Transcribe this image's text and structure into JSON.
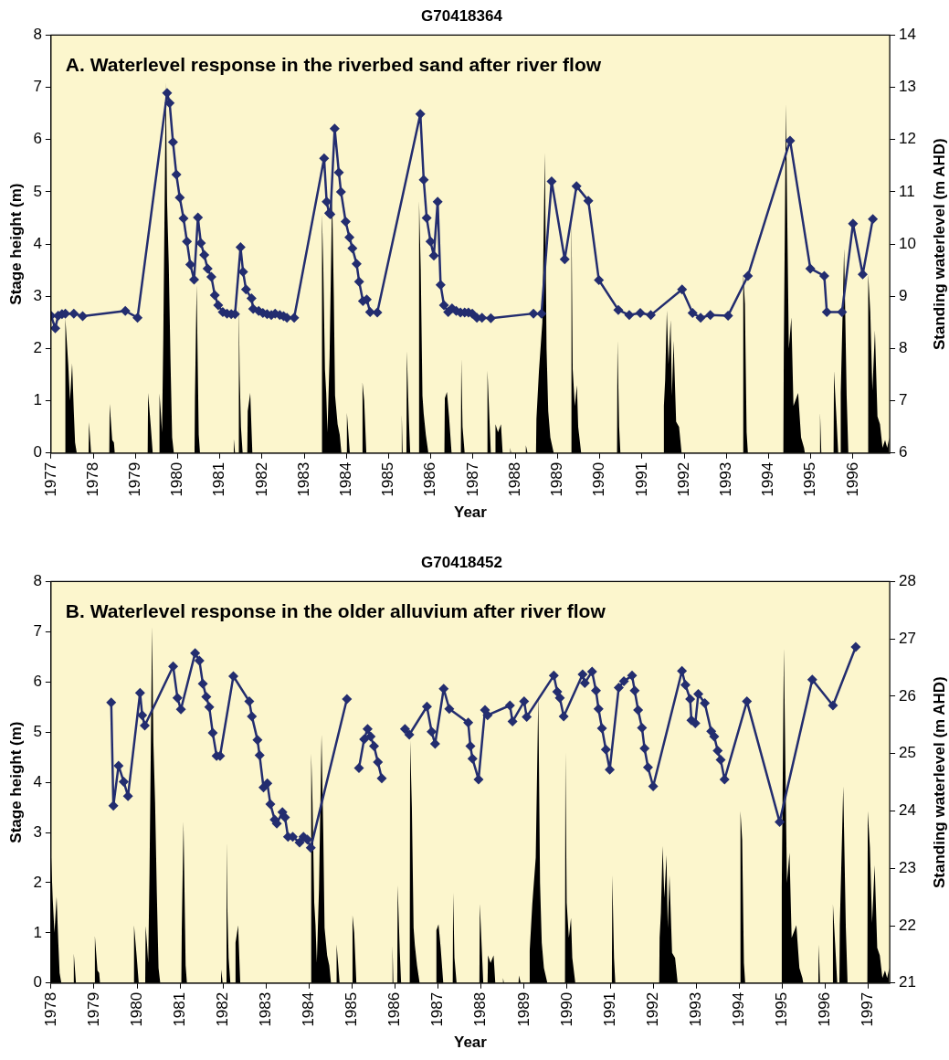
{
  "chart_data": [
    {
      "type": "line",
      "title": "G70418364",
      "xlabel": "Year",
      "ylabel": "Stage height (m)",
      "y2label": "Standing waterlevel (m AHD)",
      "annotations": [
        "A. Waterlevel response in the riverbed sand after river flow"
      ],
      "xlim": [
        1977,
        1996.87
      ],
      "xticks": [
        1977,
        1978,
        1979,
        1980,
        1981,
        1982,
        1983,
        1984,
        1985,
        1986,
        1987,
        1988,
        1989,
        1990,
        1991,
        1992,
        1993,
        1994,
        1995,
        1996
      ],
      "ylim": [
        0,
        8
      ],
      "yticks": [
        0,
        1,
        2,
        3,
        4,
        5,
        6,
        7,
        8
      ],
      "y2lim": [
        6,
        14
      ],
      "y2ticks": [
        6,
        7,
        8,
        9,
        10,
        11,
        12,
        13,
        14
      ],
      "series": [
        {
          "type": "area",
          "color": "#000000",
          "marker": "none",
          "x": [
            1977.0,
            1977.33,
            1977.34,
            1977.41,
            1977.45,
            1977.5,
            1977.54,
            1977.57,
            1977.61,
            1977.89,
            1977.9,
            1977.95,
            1978.38,
            1978.39,
            1978.45,
            1978.49,
            1978.51,
            1979.29,
            1979.3,
            1979.36,
            1979.41,
            1979.56,
            1979.57,
            1979.6,
            1979.63,
            1979.66,
            1979.72,
            1979.75,
            1979.79,
            1979.83,
            1979.87,
            1979.91,
            1980.4,
            1980.41,
            1980.45,
            1980.5,
            1980.53,
            1981.32,
            1981.33,
            1981.36,
            1981.44,
            1981.45,
            1981.47,
            1981.5,
            1981.54,
            1981.65,
            1981.66,
            1981.72,
            1981.77,
            1983.41,
            1983.42,
            1983.45,
            1983.49,
            1983.52,
            1983.55,
            1983.6,
            1983.66,
            1983.7,
            1983.73,
            1983.79,
            1983.84,
            1983.88,
            1984.0,
            1984.01,
            1984.08,
            1984.37,
            1984.38,
            1984.42,
            1984.47,
            1985.3,
            1985.31,
            1985.33,
            1985.42,
            1985.43,
            1985.48,
            1985.51,
            1985.71,
            1985.72,
            1985.76,
            1985.8,
            1985.83,
            1985.88,
            1985.94,
            1986.32,
            1986.33,
            1986.38,
            1986.43,
            1986.49,
            1986.71,
            1986.72,
            1986.75,
            1986.8,
            1987.33,
            1987.34,
            1987.4,
            1987.42,
            1987.52,
            1987.53,
            1987.59,
            1987.66,
            1987.7,
            1987.87,
            1987.88,
            1987.9,
            1988.24,
            1988.25,
            1988.29,
            1988.49,
            1988.5,
            1988.56,
            1988.64,
            1988.7,
            1988.74,
            1988.78,
            1988.83,
            1988.91,
            1989.32,
            1989.33,
            1989.36,
            1989.41,
            1989.46,
            1989.49,
            1989.56,
            1990.41,
            1990.42,
            1990.46,
            1990.49,
            1991.51,
            1991.52,
            1991.55,
            1991.59,
            1991.63,
            1991.68,
            1991.71,
            1991.75,
            1991.81,
            1991.88,
            1991.94,
            1993.39,
            1993.4,
            1993.44,
            1993.48,
            1993.51,
            1994.35,
            1994.36,
            1994.41,
            1994.48,
            1994.54,
            1994.59,
            1994.7,
            1994.77,
            1994.84,
            1994.86,
            1995.21,
            1995.22,
            1995.25,
            1995.54,
            1995.55,
            1995.6,
            1995.65,
            1995.7,
            1995.71,
            1995.79,
            1995.85,
            1995.89,
            1996.35,
            1996.36,
            1996.41,
            1996.46,
            1996.52,
            1996.58,
            1996.64,
            1996.7,
            1996.76,
            1996.81,
            1996.86
          ],
          "values": [
            0,
            0,
            2.58,
            1.67,
            1.0,
            1.72,
            0.8,
            0.2,
            0,
            0,
            0.59,
            0,
            0,
            0.94,
            0.25,
            0.2,
            0,
            0,
            1.15,
            0.55,
            0,
            0,
            1.14,
            0.8,
            0.4,
            2.2,
            7.1,
            4.8,
            3.6,
            1.8,
            0.3,
            0,
            0,
            1.05,
            3.22,
            0.35,
            0,
            0,
            0.27,
            0,
            0,
            2.85,
            1.5,
            0.5,
            0,
            0,
            0.8,
            1.15,
            0,
            0,
            4.57,
            3.6,
            1.6,
            1.15,
            0.4,
            1.85,
            4.95,
            3.0,
            1.1,
            0.55,
            0.35,
            0,
            0,
            0.77,
            0,
            0,
            1.35,
            1.0,
            0,
            0,
            0.75,
            0,
            0,
            1.95,
            0.6,
            0,
            0,
            4.83,
            3.5,
            1.1,
            0.75,
            0.35,
            0,
            0,
            1.05,
            1.17,
            0.7,
            0,
            0,
            1.8,
            0.5,
            0,
            0,
            1.58,
            0.4,
            0,
            0,
            0.55,
            0.4,
            0.55,
            0,
            0,
            0.1,
            0,
            0,
            0.15,
            0,
            0,
            0.65,
            1.57,
            2.5,
            5.75,
            2.0,
            0.8,
            0.3,
            0,
            0,
            4.6,
            1.6,
            0.9,
            1.3,
            0.5,
            0,
            0,
            2.15,
            0.5,
            0,
            0,
            0.9,
            1.4,
            2.73,
            1.7,
            2.55,
            1.1,
            2.15,
            0.6,
            0.5,
            0,
            0,
            3.43,
            2.85,
            0.4,
            0,
            0,
            1.9,
            6.68,
            2.0,
            2.6,
            0.9,
            1.15,
            0.3,
            0.1,
            0,
            0,
            0.77,
            0,
            0,
            1.57,
            0.8,
            0,
            0,
            1.15,
            3.92,
            1.1,
            0,
            0,
            3.43,
            2.7,
            1.2,
            2.35,
            0.7,
            0.55,
            0.1,
            0.25,
            0.1,
            0.3
          ]
        },
        {
          "type": "line",
          "color": "#232d6f",
          "marker": "diamond",
          "axis": "y2",
          "x": [
            1977.0,
            1977.1,
            1977.17,
            1977.26,
            1977.34,
            1977.54,
            1977.75,
            1978.76,
            1979.05,
            1979.75,
            1979.81,
            1979.89,
            1979.97,
            1980.05,
            1980.14,
            1980.22,
            1980.3,
            1980.39,
            1980.48,
            1980.55,
            1980.63,
            1980.71,
            1980.8,
            1980.88,
            1980.96,
            1981.07,
            1981.17,
            1981.27,
            1981.36,
            1981.49,
            1981.55,
            1981.62,
            1981.75,
            1981.79,
            1981.92,
            1982.02,
            1982.12,
            1982.22,
            1982.31,
            1982.42,
            1982.51,
            1982.59,
            1982.76,
            1983.47,
            1983.53,
            1983.59,
            1983.62,
            1983.72,
            1983.82,
            1983.87,
            1983.98,
            1984.07,
            1984.14,
            1984.24,
            1984.3,
            1984.39,
            1984.48,
            1984.56,
            1984.73,
            1985.75,
            1985.83,
            1985.9,
            1985.99,
            1986.07,
            1986.16,
            1986.23,
            1986.31,
            1986.41,
            1986.5,
            1986.6,
            1986.7,
            1986.8,
            1986.89,
            1986.98,
            1987.09,
            1987.21,
            1987.42,
            1988.43,
            1988.62,
            1988.86,
            1989.17,
            1989.45,
            1989.73,
            1989.98,
            1990.44,
            1990.7,
            1990.96,
            1991.21,
            1991.95,
            1992.2,
            1992.39,
            1992.62,
            1993.04,
            1993.51,
            1994.51,
            1994.99,
            1995.32,
            1995.38,
            1995.74,
            1996.0,
            1996.23,
            1996.47
          ],
          "values": [
            8.63,
            8.39,
            8.63,
            8.66,
            8.67,
            8.67,
            8.62,
            8.72,
            8.59,
            12.89,
            12.7,
            11.95,
            11.33,
            10.89,
            10.49,
            10.05,
            9.61,
            9.32,
            10.51,
            10.02,
            9.79,
            9.53,
            9.37,
            9.02,
            8.83,
            8.7,
            8.67,
            8.66,
            8.66,
            9.94,
            9.47,
            9.13,
            8.96,
            8.76,
            8.72,
            8.68,
            8.66,
            8.64,
            8.67,
            8.64,
            8.62,
            8.59,
            8.59,
            11.64,
            10.81,
            10.59,
            10.57,
            12.21,
            11.37,
            11.0,
            10.43,
            10.13,
            9.92,
            9.62,
            9.28,
            8.91,
            8.94,
            8.7,
            8.69,
            12.49,
            11.23,
            10.5,
            10.05,
            9.78,
            10.81,
            9.22,
            8.83,
            8.7,
            8.77,
            8.72,
            8.69,
            8.69,
            8.69,
            8.67,
            8.59,
            8.59,
            8.58,
            8.67,
            8.67,
            11.2,
            9.71,
            11.11,
            10.83,
            9.31,
            8.74,
            8.64,
            8.68,
            8.64,
            9.13,
            8.68,
            8.59,
            8.64,
            8.63,
            9.39,
            11.98,
            9.53,
            9.39,
            8.7,
            8.7,
            10.39,
            9.42,
            10.48
          ]
        }
      ]
    },
    {
      "type": "line",
      "title": "G70418452",
      "xlabel": "Year",
      "ylabel": "Stage height (m)",
      "y2label": "Standing waterlevel (m AHD)",
      "annotations": [
        "B. Waterlevel response in the older alluvium after river flow"
      ],
      "xlim": [
        1978,
        1997.5
      ],
      "xticks": [
        1978,
        1979,
        1980,
        1981,
        1982,
        1983,
        1984,
        1985,
        1986,
        1987,
        1988,
        1989,
        1990,
        1991,
        1992,
        1993,
        1994,
        1995,
        1996,
        1997
      ],
      "ylim": [
        0,
        8
      ],
      "yticks": [
        0,
        1,
        2,
        3,
        4,
        5,
        6,
        7,
        8
      ],
      "y2lim": [
        21,
        28
      ],
      "y2ticks": [
        21,
        22,
        23,
        24,
        25,
        26,
        27,
        28
      ],
      "series": [
        {
          "type": "area",
          "color": "#000000",
          "marker": "none",
          "x": [
            1978.0,
            1978.04,
            1978.08,
            1978.13,
            1978.17,
            1978.2,
            1978.24,
            1978.52,
            1978.53,
            1978.58,
            1979.01,
            1979.02,
            1979.08,
            1979.12,
            1979.14,
            1979.92,
            1979.93,
            1979.99,
            1980.04,
            1980.19,
            1980.2,
            1980.23,
            1980.26,
            1980.29,
            1980.35,
            1980.38,
            1980.42,
            1980.46,
            1980.5,
            1980.54,
            1981.03,
            1981.04,
            1981.08,
            1981.13,
            1981.16,
            1981.95,
            1981.96,
            1981.99,
            1982.07,
            1982.08,
            1982.1,
            1982.13,
            1982.17,
            1982.28,
            1982.29,
            1982.35,
            1982.4,
            1984.04,
            1984.05,
            1984.08,
            1984.12,
            1984.15,
            1984.18,
            1984.23,
            1984.29,
            1984.33,
            1984.36,
            1984.42,
            1984.47,
            1984.51,
            1984.63,
            1984.64,
            1984.71,
            1985.0,
            1985.01,
            1985.05,
            1985.1,
            1985.93,
            1985.94,
            1985.96,
            1986.05,
            1986.06,
            1986.11,
            1986.14,
            1986.34,
            1986.35,
            1986.39,
            1986.43,
            1986.46,
            1986.51,
            1986.57,
            1986.95,
            1986.96,
            1987.01,
            1987.06,
            1987.12,
            1987.34,
            1987.35,
            1987.38,
            1987.43,
            1987.96,
            1987.97,
            1988.03,
            1988.05,
            1988.15,
            1988.16,
            1988.22,
            1988.29,
            1988.33,
            1988.5,
            1988.51,
            1988.53,
            1988.87,
            1988.88,
            1988.92,
            1989.12,
            1989.13,
            1989.19,
            1989.27,
            1989.33,
            1989.37,
            1989.41,
            1989.46,
            1989.54,
            1989.95,
            1989.96,
            1989.99,
            1990.04,
            1990.09,
            1990.12,
            1990.19,
            1991.04,
            1991.05,
            1991.09,
            1991.12,
            1992.14,
            1992.15,
            1992.18,
            1992.22,
            1992.26,
            1992.31,
            1992.34,
            1992.38,
            1992.44,
            1992.51,
            1992.57,
            1994.02,
            1994.03,
            1994.07,
            1994.11,
            1994.14,
            1994.98,
            1994.99,
            1995.04,
            1995.11,
            1995.17,
            1995.22,
            1995.33,
            1995.4,
            1995.47,
            1995.49,
            1995.84,
            1995.85,
            1995.88,
            1996.17,
            1996.18,
            1996.23,
            1996.28,
            1996.33,
            1996.34,
            1996.42,
            1996.48,
            1996.52,
            1996.98,
            1996.99,
            1997.04,
            1997.09,
            1997.15,
            1997.21,
            1997.27,
            1997.33,
            1997.39,
            1997.44,
            1997.49
          ],
          "values": [
            2.58,
            1.67,
            1.0,
            1.72,
            0.8,
            0.2,
            0,
            0,
            0.59,
            0,
            0,
            0.94,
            0.25,
            0.2,
            0,
            0,
            1.15,
            0.55,
            0,
            0,
            1.14,
            0.8,
            0.4,
            2.2,
            7.1,
            4.8,
            3.6,
            1.8,
            0.3,
            0,
            0,
            1.05,
            3.22,
            0.35,
            0,
            0,
            0.27,
            0,
            0,
            2.85,
            1.5,
            0.5,
            0,
            0,
            0.8,
            1.15,
            0,
            0,
            4.57,
            3.6,
            1.6,
            1.15,
            0.4,
            1.85,
            4.95,
            3.0,
            1.1,
            0.55,
            0.35,
            0,
            0,
            0.77,
            0,
            0,
            1.35,
            1.0,
            0,
            0,
            0.75,
            0,
            0,
            1.95,
            0.6,
            0,
            0,
            4.83,
            3.5,
            1.1,
            0.75,
            0.35,
            0,
            0,
            1.05,
            1.17,
            0.7,
            0,
            0,
            1.8,
            0.5,
            0,
            0,
            1.58,
            0.4,
            0,
            0,
            0.55,
            0.4,
            0.55,
            0,
            0,
            0.1,
            0,
            0,
            0.15,
            0,
            0,
            0.65,
            1.57,
            2.5,
            5.75,
            2.0,
            0.8,
            0.3,
            0,
            0,
            4.6,
            1.6,
            0.9,
            1.3,
            0.5,
            0,
            0,
            2.15,
            0.5,
            0,
            0,
            0.9,
            1.4,
            2.73,
            1.7,
            2.55,
            1.1,
            2.15,
            0.6,
            0.5,
            0,
            0,
            3.43,
            2.85,
            0.4,
            0,
            0,
            1.9,
            6.68,
            2.0,
            2.6,
            0.9,
            1.15,
            0.3,
            0.1,
            0,
            0,
            0.77,
            0,
            0,
            1.57,
            0.8,
            0,
            0,
            1.15,
            3.92,
            1.1,
            0,
            0,
            3.43,
            2.7,
            1.2,
            2.35,
            0.7,
            0.55,
            0.1,
            0.25,
            0.1,
            0.3
          ]
        },
        {
          "type": "line",
          "color": "#232d6f",
          "marker": "diamond",
          "axis": "y2",
          "x": [
            1979.4,
            1979.45,
            1979.57,
            1979.69,
            1979.79,
            1980.07,
            1980.12,
            1980.18,
            1980.84,
            1980.94,
            1981.02,
            1981.35,
            1981.45,
            1981.53,
            1981.61,
            1981.68,
            1981.76,
            1981.85,
            1981.93,
            1982.24,
            1982.61,
            1982.67,
            1982.8,
            1982.85,
            1982.94,
            1983.03,
            1983.1,
            1983.2,
            1983.25,
            1983.38,
            1983.44,
            1983.51,
            1983.62,
            1983.78,
            1983.87,
            1983.96,
            1984.04,
            1984.88,
            1985.0,
            1985.16,
            1985.28,
            1985.36,
            1985.43,
            1985.51,
            1985.6,
            1985.69,
            1986.0,
            1986.23,
            1986.33,
            1986.74,
            1986.85,
            1986.93,
            1987.13,
            1987.26,
            1987.7,
            1987.75,
            1987.8,
            1987.94,
            1988.09,
            1988.15,
            1988.67,
            1988.73,
            1989.0,
            1989.06,
            1989.69,
            1989.77,
            1989.83,
            1989.92,
            1990.36,
            1990.41,
            1990.58,
            1990.67,
            1990.73,
            1990.81,
            1990.9,
            1990.99,
            1991.2,
            1991.32,
            1991.51,
            1991.57,
            1991.65,
            1991.74,
            1991.8,
            1991.88,
            1992.0,
            1992.67,
            1992.75,
            1992.86,
            1992.89,
            1992.98,
            1993.05,
            1993.2,
            1993.35,
            1993.42,
            1993.5,
            1993.57,
            1993.66,
            1994.18,
            1994.94,
            1995.7,
            1996.18,
            1996.71
          ],
          "values": [
            25.89,
            24.09,
            24.79,
            24.51,
            24.26,
            26.06,
            25.67,
            25.49,
            26.52,
            25.97,
            25.77,
            26.75,
            26.62,
            26.22,
            25.99,
            25.81,
            25.36,
            24.96,
            24.96,
            26.35,
            25.91,
            25.65,
            25.24,
            24.97,
            24.41,
            24.48,
            24.12,
            23.85,
            23.78,
            23.98,
            23.89,
            23.55,
            23.55,
            23.45,
            23.55,
            23.5,
            23.36,
            25.95,
            null,
            24.75,
            25.25,
            25.43,
            25.3,
            25.13,
            24.85,
            24.57,
            null,
            25.43,
            25.33,
            25.82,
            25.38,
            25.17,
            26.13,
            25.78,
            25.54,
            25.13,
            24.91,
            24.55,
            25.76,
            25.67,
            25.84,
            25.56,
            25.91,
            25.64,
            26.36,
            26.08,
            25.97,
            25.65,
            26.38,
            26.23,
            26.43,
            26.1,
            25.78,
            25.44,
            25.07,
            24.72,
            26.15,
            26.26,
            26.36,
            26.1,
            25.76,
            25.45,
            25.09,
            24.76,
            24.43,
            26.44,
            26.2,
            25.95,
            25.58,
            25.53,
            26.04,
            25.88,
            25.39,
            25.3,
            25.05,
            24.89,
            24.55,
            25.91,
            23.81,
            26.29,
            25.84,
            26.86
          ]
        }
      ]
    }
  ]
}
